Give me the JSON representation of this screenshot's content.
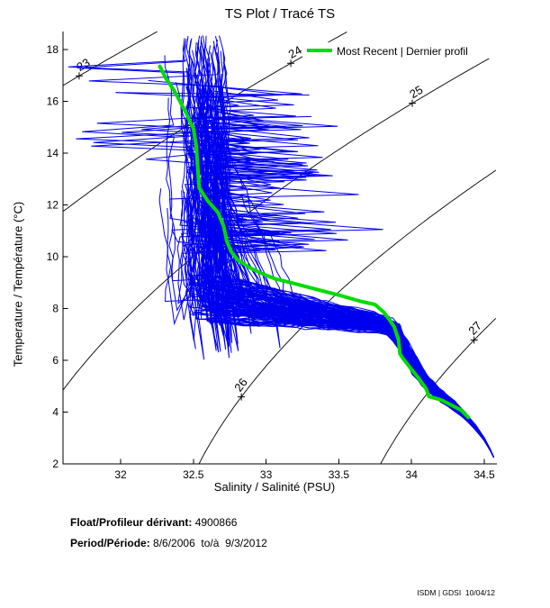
{
  "title": "TS Plot / Tracé TS",
  "legend": {
    "label": "Most Recent | Dernier profil"
  },
  "axes": {
    "x": {
      "label": "Salinity / Salinité (PSU)",
      "min": 31.604,
      "max": 34.586,
      "ticks": [
        32,
        32.5,
        33,
        33.5,
        34,
        34.5
      ],
      "tick_labels": [
        "32",
        "32.5",
        "33",
        "33.5",
        "34",
        "34.5"
      ]
    },
    "y": {
      "label": "Temperature / Température (°C)",
      "min": 2,
      "max": 18.7,
      "ticks": [
        2,
        4,
        6,
        8,
        10,
        12,
        14,
        16,
        18
      ],
      "tick_labels": [
        "2",
        "4",
        "6",
        "8",
        "10",
        "12",
        "14",
        "16",
        "18"
      ]
    }
  },
  "chart_data": {
    "type": "line",
    "xlabel": "Salinity / Salinité (PSU)",
    "ylabel": "Temperature / Température (°C)",
    "xlim": [
      31.604,
      34.586
    ],
    "ylim": [
      2,
      18.7
    ],
    "grid": false,
    "legend_position": "top-right-inside",
    "series": [
      {
        "name": "profiles-envelope",
        "color": "#0000f0",
        "count": 150,
        "seed": 42,
        "mean_surface_salinity": 32.55,
        "surface_temp_range": [
          11.5,
          18.6
        ],
        "knee_temp_range": [
          7.6,
          9.3
        ],
        "band_salinity_range": [
          32.55,
          33.85
        ],
        "band_temp_center": 7.35,
        "tail": [
          [
            33.9,
            7.05
          ],
          [
            33.96,
            6.4
          ],
          [
            34.02,
            5.8
          ],
          [
            34.08,
            5.3
          ],
          [
            34.14,
            4.95
          ],
          [
            34.21,
            4.6
          ],
          [
            34.29,
            4.25
          ],
          [
            34.37,
            3.85
          ],
          [
            34.44,
            3.4
          ],
          [
            34.5,
            2.95
          ],
          [
            34.54,
            2.55
          ],
          [
            34.565,
            2.25
          ],
          [
            34.578,
            2.02
          ]
        ]
      },
      {
        "name": "most-recent",
        "color": "#00db00",
        "points": [
          [
            32.27,
            17.35
          ],
          [
            32.31,
            16.9
          ],
          [
            32.37,
            16.4
          ],
          [
            32.45,
            15.55
          ],
          [
            32.5,
            14.95
          ],
          [
            32.52,
            14.3
          ],
          [
            32.53,
            13.5
          ],
          [
            32.54,
            12.65
          ],
          [
            32.6,
            12.15
          ],
          [
            32.67,
            11.7
          ],
          [
            32.71,
            11.15
          ],
          [
            32.73,
            10.6
          ],
          [
            32.76,
            10.2
          ],
          [
            32.8,
            9.9
          ],
          [
            32.88,
            9.6
          ],
          [
            32.97,
            9.35
          ],
          [
            33.06,
            9.15
          ],
          [
            33.17,
            9.0
          ],
          [
            33.36,
            8.72
          ],
          [
            33.51,
            8.5
          ],
          [
            33.65,
            8.28
          ],
          [
            33.75,
            8.15
          ],
          [
            33.81,
            7.85
          ],
          [
            33.85,
            7.55
          ],
          [
            33.88,
            7.3
          ],
          [
            33.91,
            6.8
          ],
          [
            33.92,
            6.25
          ],
          [
            33.94,
            6.08
          ],
          [
            34.0,
            5.65
          ],
          [
            34.05,
            5.3
          ],
          [
            34.1,
            4.9
          ],
          [
            34.12,
            4.6
          ],
          [
            34.2,
            4.48
          ],
          [
            34.28,
            4.25
          ],
          [
            34.34,
            4.08
          ],
          [
            34.39,
            3.8
          ]
        ]
      }
    ],
    "contours": {
      "name": "sigma-t-isopycnals",
      "color": "#000000",
      "levels": [
        23,
        24,
        25,
        26,
        27
      ],
      "labels": [
        {
          "level": 23,
          "s": 31.715
        },
        {
          "level": 24,
          "s": 33.17
        },
        {
          "level": 25,
          "s": 34.005
        },
        {
          "level": 26,
          "s": 32.83
        },
        {
          "level": 27,
          "s": 34.43
        }
      ]
    }
  },
  "footer": {
    "float_label": "Float/Profileur dérivant:",
    "float_value": "4900866",
    "period_label": "Period/Période:",
    "period_value": "8/6/2006  to/à  9/3/2012"
  },
  "credit": "ISDM | GDSI  10/04/12",
  "colors": {
    "profiles": "#0000f0",
    "most_recent": "#00db00",
    "contour": "#000000",
    "axis": "#000000"
  }
}
